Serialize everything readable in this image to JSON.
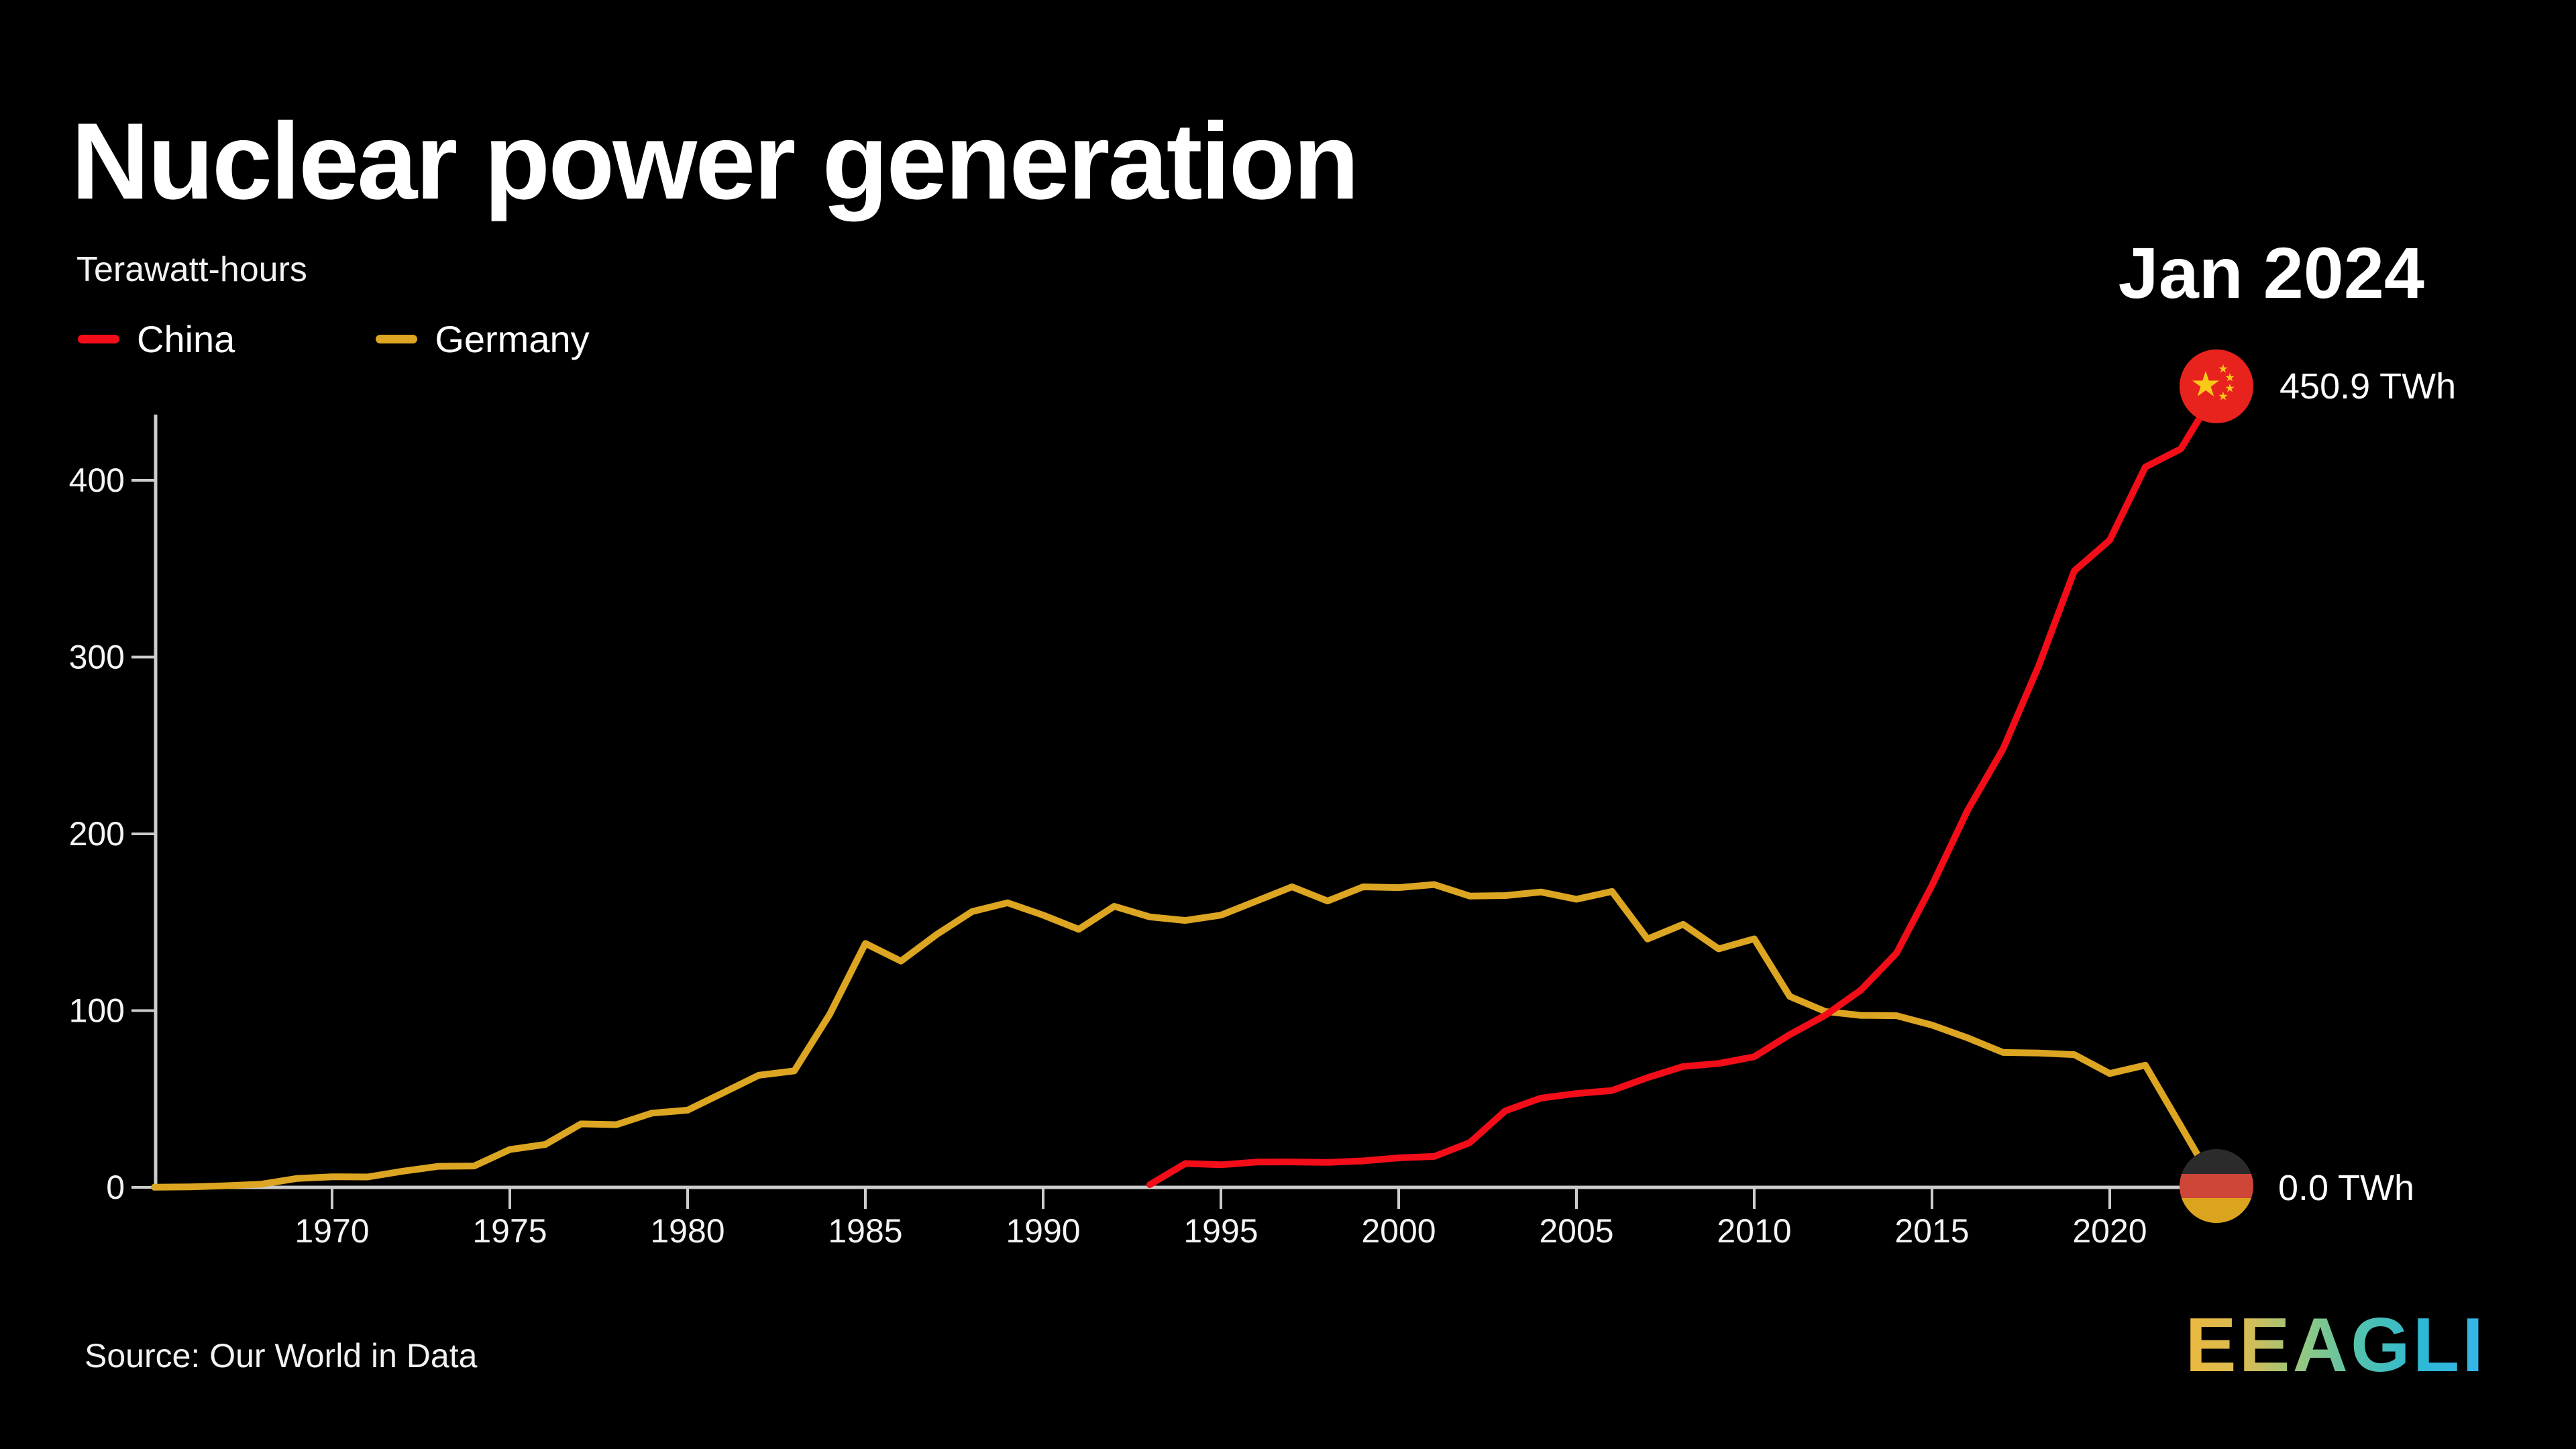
{
  "header": {
    "title": "Nuclear power generation",
    "subtitle": "Terawatt-hours",
    "date_label": "Jan 2024"
  },
  "legend": [
    {
      "label": "China",
      "color": "#f20d18",
      "icon": "china-line-dash-icon"
    },
    {
      "label": "Germany",
      "color": "#dca522",
      "icon": "germany-line-dash-icon"
    }
  ],
  "annotations": {
    "china_end_value": "450.9 TWh",
    "germany_end_value": "0.0 TWh",
    "china_badge_icon": "china-flag-icon",
    "germany_badge_icon": "germany-flag-icon"
  },
  "footer": {
    "source": "Source: Our World in Data",
    "logo_text": "EEAGLI"
  },
  "colors": {
    "background": "#000000",
    "axis": "#cccccc",
    "text": "#ffffff",
    "china_line": "#f20d18",
    "germany_line": "#dca522",
    "china_flag_red": "#e8231e",
    "china_flag_yellow": "#f7c918",
    "germany_flag_black": "#2b2b2b",
    "germany_flag_red": "#ce4638",
    "germany_flag_gold": "#dba41e"
  },
  "chart_data": {
    "type": "line",
    "title": "Nuclear power generation",
    "ylabel": "Terawatt-hours",
    "xlabel": "",
    "grid": false,
    "legend_position": "top-left",
    "xlim": [
      1965,
      2024.5
    ],
    "ylim": [
      0,
      437
    ],
    "x_ticks": [
      1970,
      1975,
      1980,
      1985,
      1990,
      1995,
      2000,
      2005,
      2010,
      2015,
      2020
    ],
    "y_ticks": [
      0,
      100,
      200,
      300,
      400
    ],
    "series": [
      {
        "name": "Germany",
        "color": "#dca522",
        "x": [
          1965,
          1966,
          1967,
          1968,
          1969,
          1970,
          1971,
          1972,
          1973,
          1974,
          1975,
          1976,
          1977,
          1978,
          1979,
          1980,
          1981,
          1982,
          1983,
          1984,
          1985,
          1986,
          1987,
          1988,
          1989,
          1990,
          1991,
          1992,
          1993,
          1994,
          1995,
          1996,
          1997,
          1998,
          1999,
          2000,
          2001,
          2002,
          2003,
          2004,
          2005,
          2006,
          2007,
          2008,
          2009,
          2010,
          2011,
          2012,
          2013,
          2014,
          2015,
          2016,
          2017,
          2018,
          2019,
          2020,
          2021,
          2022,
          2023
        ],
        "values": [
          0.1,
          0.3,
          0.9,
          1.8,
          5,
          6,
          5.9,
          9.2,
          11.9,
          12.1,
          21.4,
          24.3,
          35.9,
          35.5,
          42,
          43.7,
          53.5,
          63.4,
          65.9,
          98,
          138,
          128,
          143,
          156,
          161,
          154,
          146,
          159,
          153,
          151,
          154,
          162,
          170,
          162,
          170,
          169.6,
          171.3,
          164.8,
          165.1,
          167.1,
          163,
          167.4,
          140.5,
          148.8,
          134.9,
          140.6,
          108,
          99.5,
          97.3,
          97.1,
          91.8,
          84.6,
          76.3,
          76,
          75.1,
          64.4,
          69.1,
          34.7,
          0
        ]
      },
      {
        "name": "China",
        "color": "#f20d18",
        "x": [
          1993,
          1994,
          1995,
          1996,
          1997,
          1998,
          1999,
          2000,
          2001,
          2002,
          2003,
          2004,
          2005,
          2006,
          2007,
          2008,
          2009,
          2010,
          2011,
          2012,
          2013,
          2014,
          2015,
          2016,
          2017,
          2018,
          2019,
          2020,
          2021,
          2022,
          2023
        ],
        "values": [
          1.5,
          13.5,
          12.8,
          14.3,
          14.4,
          14.1,
          15,
          16.7,
          17.5,
          25.3,
          43.3,
          50.5,
          53.1,
          54.8,
          62.1,
          68.4,
          70.1,
          73.9,
          86.4,
          97.4,
          111.6,
          132.5,
          170.8,
          213.3,
          248.1,
          295,
          348.7,
          366.2,
          407.5,
          417.8,
          450.9
        ]
      }
    ],
    "end_labels": [
      {
        "series": "China",
        "value": 450.9,
        "label": "450.9 TWh"
      },
      {
        "series": "Germany",
        "value": 0.0,
        "label": "0.0 TWh"
      }
    ]
  }
}
